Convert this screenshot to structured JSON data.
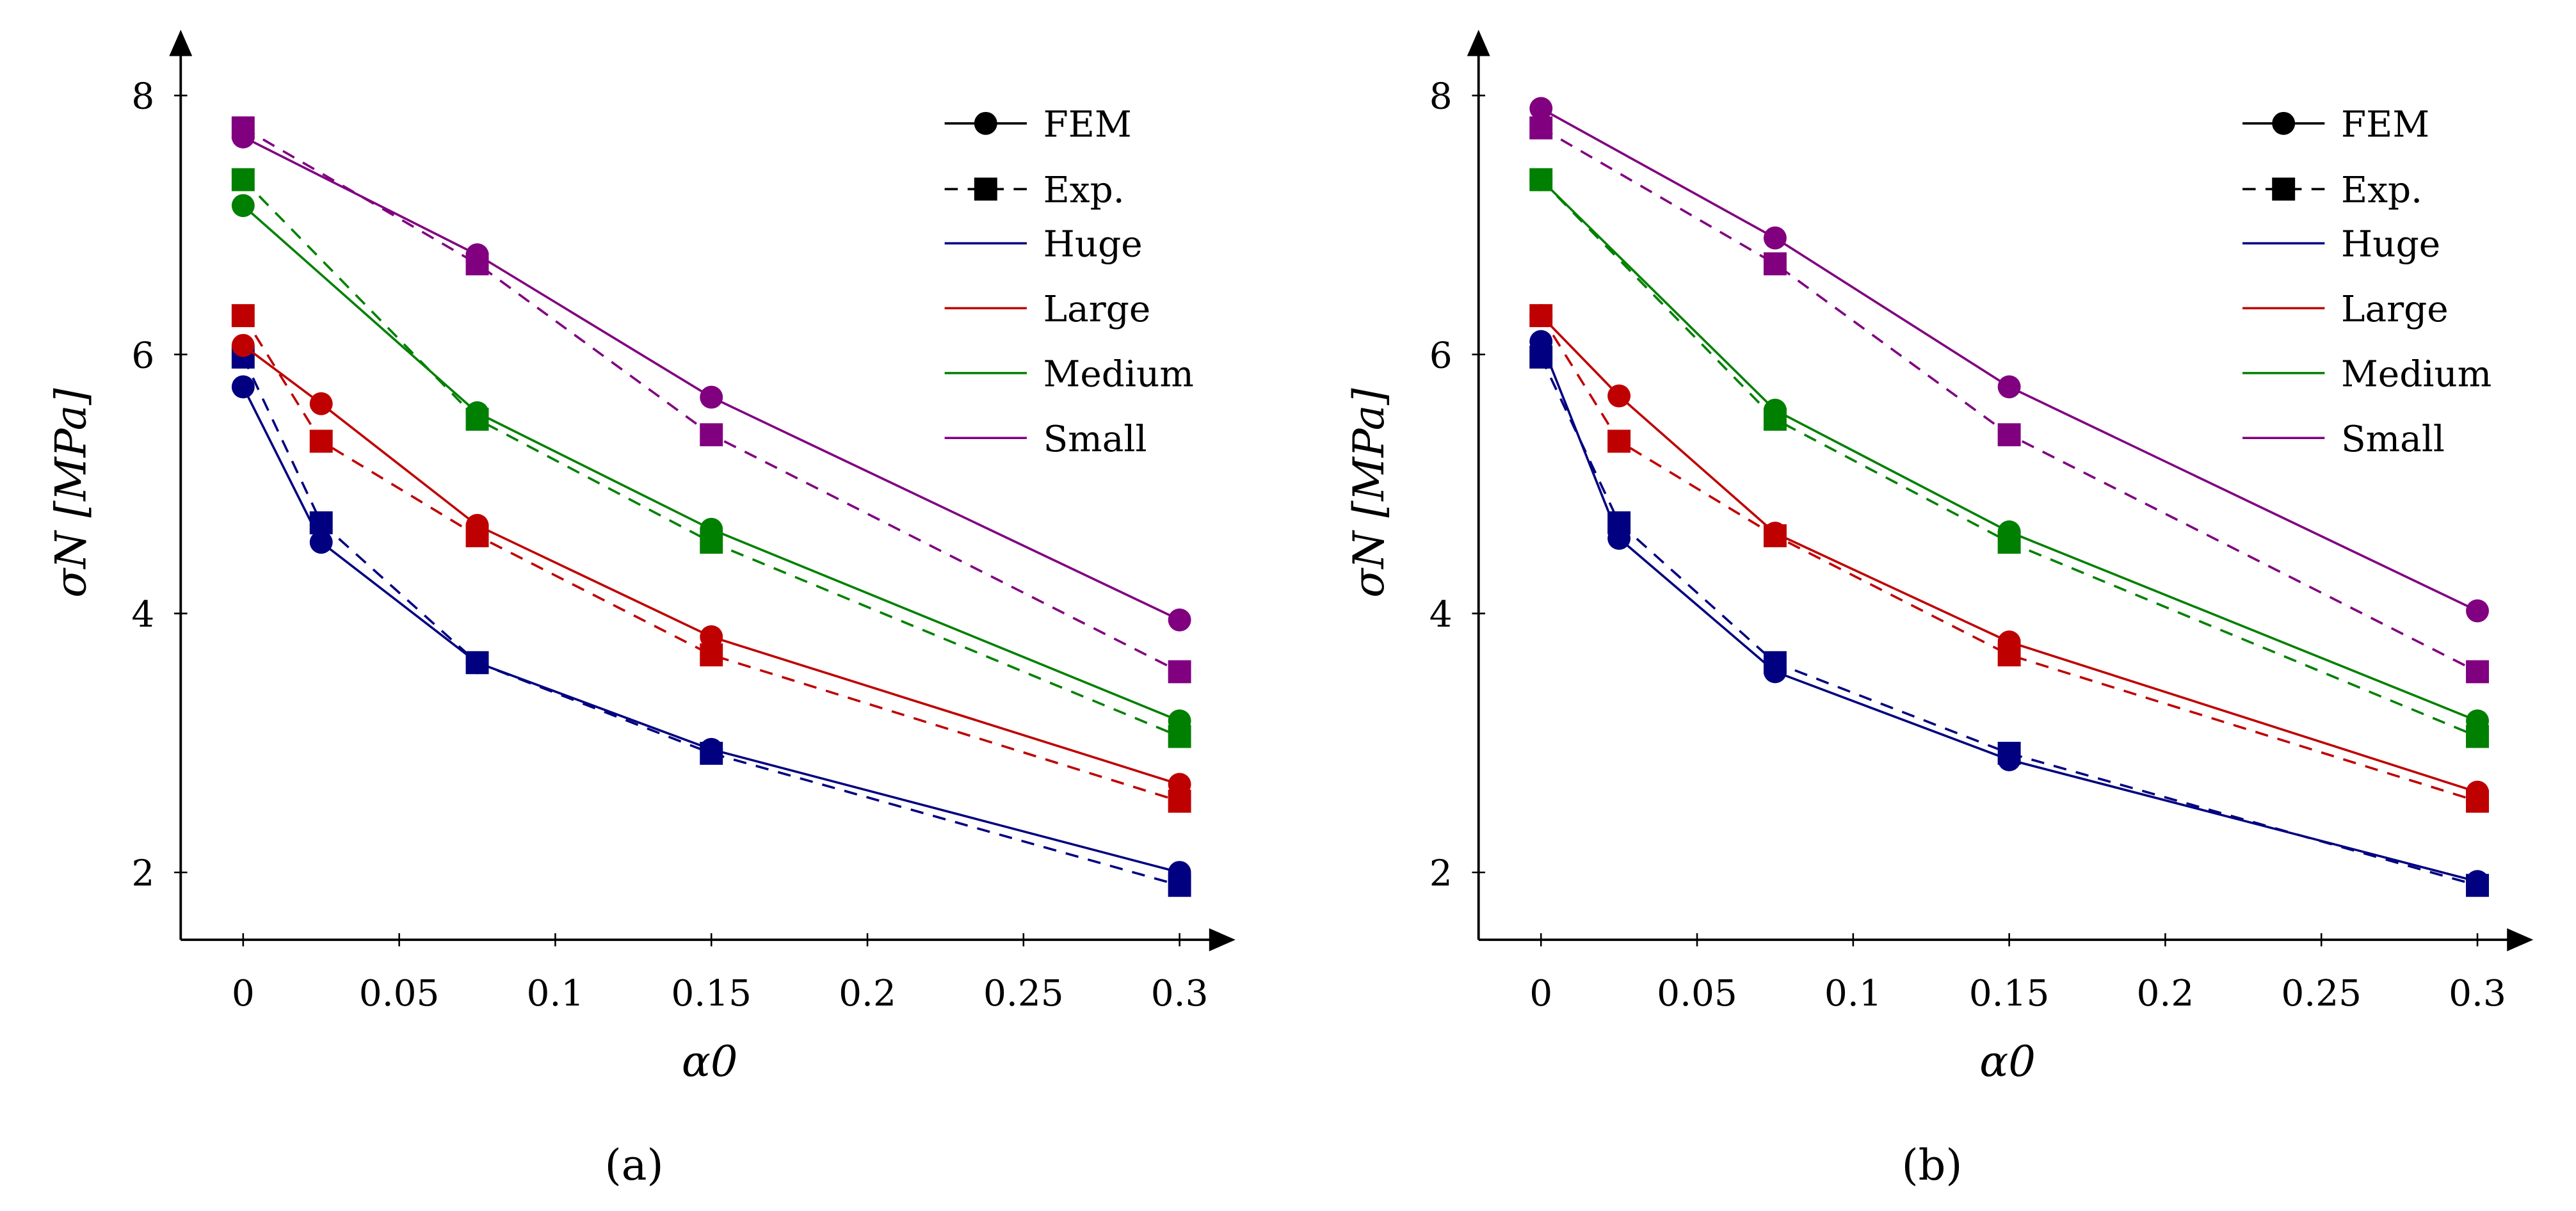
{
  "colors": {
    "Huge": "#000080",
    "Large": "#bf0000",
    "Medium": "#008000",
    "Small": "#800080"
  },
  "chart_data": [
    {
      "type": "line",
      "caption": "(a)",
      "xlabel": "α0",
      "ylabel": "σN [MPa]",
      "xlim": [
        -0.02,
        0.31
      ],
      "ylim": [
        1.5,
        8.6
      ],
      "xticks": [
        0,
        0.05,
        0.1,
        0.15,
        0.2,
        0.25,
        0.3
      ],
      "xtick_labels": [
        "0",
        "0.05",
        "0.1",
        "0.15",
        "0.2",
        "0.25",
        "0.3"
      ],
      "yticks": [
        2,
        4,
        6,
        8
      ],
      "ytick_labels": [
        "2",
        "4",
        "6",
        "8"
      ],
      "legend": {
        "placement": "top-right",
        "style_entries": [
          "FEM",
          "Exp."
        ],
        "color_entries": [
          "Huge",
          "Large",
          "Medium",
          "Small"
        ]
      },
      "series": [
        {
          "name": "Huge",
          "kind": "FEM",
          "x": [
            0,
            0.025,
            0.075,
            0.15,
            0.3
          ],
          "values": [
            5.75,
            4.55,
            3.62,
            2.95,
            2.0
          ]
        },
        {
          "name": "Huge",
          "kind": "Exp.",
          "x": [
            0,
            0.025,
            0.075,
            0.15,
            0.3
          ],
          "values": [
            5.98,
            4.7,
            3.62,
            2.92,
            1.9
          ]
        },
        {
          "name": "Large",
          "kind": "FEM",
          "x": [
            0,
            0.025,
            0.075,
            0.15,
            0.3
          ],
          "values": [
            6.07,
            5.62,
            4.68,
            3.82,
            2.68
          ]
        },
        {
          "name": "Large",
          "kind": "Exp.",
          "x": [
            0,
            0.025,
            0.075,
            0.15,
            0.3
          ],
          "values": [
            6.3,
            5.33,
            4.6,
            3.68,
            2.55
          ]
        },
        {
          "name": "Medium",
          "kind": "FEM",
          "x": [
            0,
            0.075,
            0.15,
            0.3
          ],
          "values": [
            7.15,
            5.55,
            4.65,
            3.17
          ]
        },
        {
          "name": "Medium",
          "kind": "Exp.",
          "x": [
            0,
            0.075,
            0.15,
            0.3
          ],
          "values": [
            7.35,
            5.5,
            4.55,
            3.05
          ]
        },
        {
          "name": "Small",
          "kind": "FEM",
          "x": [
            0,
            0.075,
            0.15,
            0.3
          ],
          "values": [
            7.68,
            6.77,
            5.67,
            3.95
          ]
        },
        {
          "name": "Small",
          "kind": "Exp.",
          "x": [
            0,
            0.075,
            0.15,
            0.3
          ],
          "values": [
            7.75,
            6.7,
            5.38,
            3.55
          ]
        }
      ]
    },
    {
      "type": "line",
      "caption": "(b)",
      "xlabel": "α0",
      "ylabel": "σN [MPa]",
      "xlim": [
        -0.02,
        0.31
      ],
      "ylim": [
        1.5,
        8.6
      ],
      "xticks": [
        0,
        0.05,
        0.1,
        0.15,
        0.2,
        0.25,
        0.3
      ],
      "xtick_labels": [
        "0",
        "0.05",
        "0.1",
        "0.15",
        "0.2",
        "0.25",
        "0.3"
      ],
      "yticks": [
        2,
        4,
        6,
        8
      ],
      "ytick_labels": [
        "2",
        "4",
        "6",
        "8"
      ],
      "legend": {
        "placement": "top-right",
        "style_entries": [
          "FEM",
          "Exp."
        ],
        "color_entries": [
          "Huge",
          "Large",
          "Medium",
          "Small"
        ]
      },
      "series": [
        {
          "name": "Huge",
          "kind": "FEM",
          "x": [
            0,
            0.025,
            0.075,
            0.15,
            0.3
          ],
          "values": [
            6.1,
            4.58,
            3.55,
            2.87,
            1.93
          ]
        },
        {
          "name": "Huge",
          "kind": "Exp.",
          "x": [
            0,
            0.025,
            0.075,
            0.15,
            0.3
          ],
          "values": [
            5.98,
            4.7,
            3.62,
            2.92,
            1.9
          ]
        },
        {
          "name": "Large",
          "kind": "FEM",
          "x": [
            0,
            0.025,
            0.075,
            0.15,
            0.3
          ],
          "values": [
            6.3,
            5.68,
            4.62,
            3.78,
            2.62
          ]
        },
        {
          "name": "Large",
          "kind": "Exp.",
          "x": [
            0,
            0.025,
            0.075,
            0.15,
            0.3
          ],
          "values": [
            6.3,
            5.33,
            4.6,
            3.68,
            2.55
          ]
        },
        {
          "name": "Medium",
          "kind": "FEM",
          "x": [
            0,
            0.075,
            0.15,
            0.3
          ],
          "values": [
            7.35,
            5.57,
            4.63,
            3.17
          ]
        },
        {
          "name": "Medium",
          "kind": "Exp.",
          "x": [
            0,
            0.075,
            0.15,
            0.3
          ],
          "values": [
            7.35,
            5.5,
            4.55,
            3.05
          ]
        },
        {
          "name": "Small",
          "kind": "FEM",
          "x": [
            0,
            0.075,
            0.15,
            0.3
          ],
          "values": [
            7.9,
            6.9,
            5.75,
            4.02
          ]
        },
        {
          "name": "Small",
          "kind": "Exp.",
          "x": [
            0,
            0.075,
            0.15,
            0.3
          ],
          "values": [
            7.75,
            6.7,
            5.38,
            3.55
          ]
        }
      ]
    }
  ]
}
